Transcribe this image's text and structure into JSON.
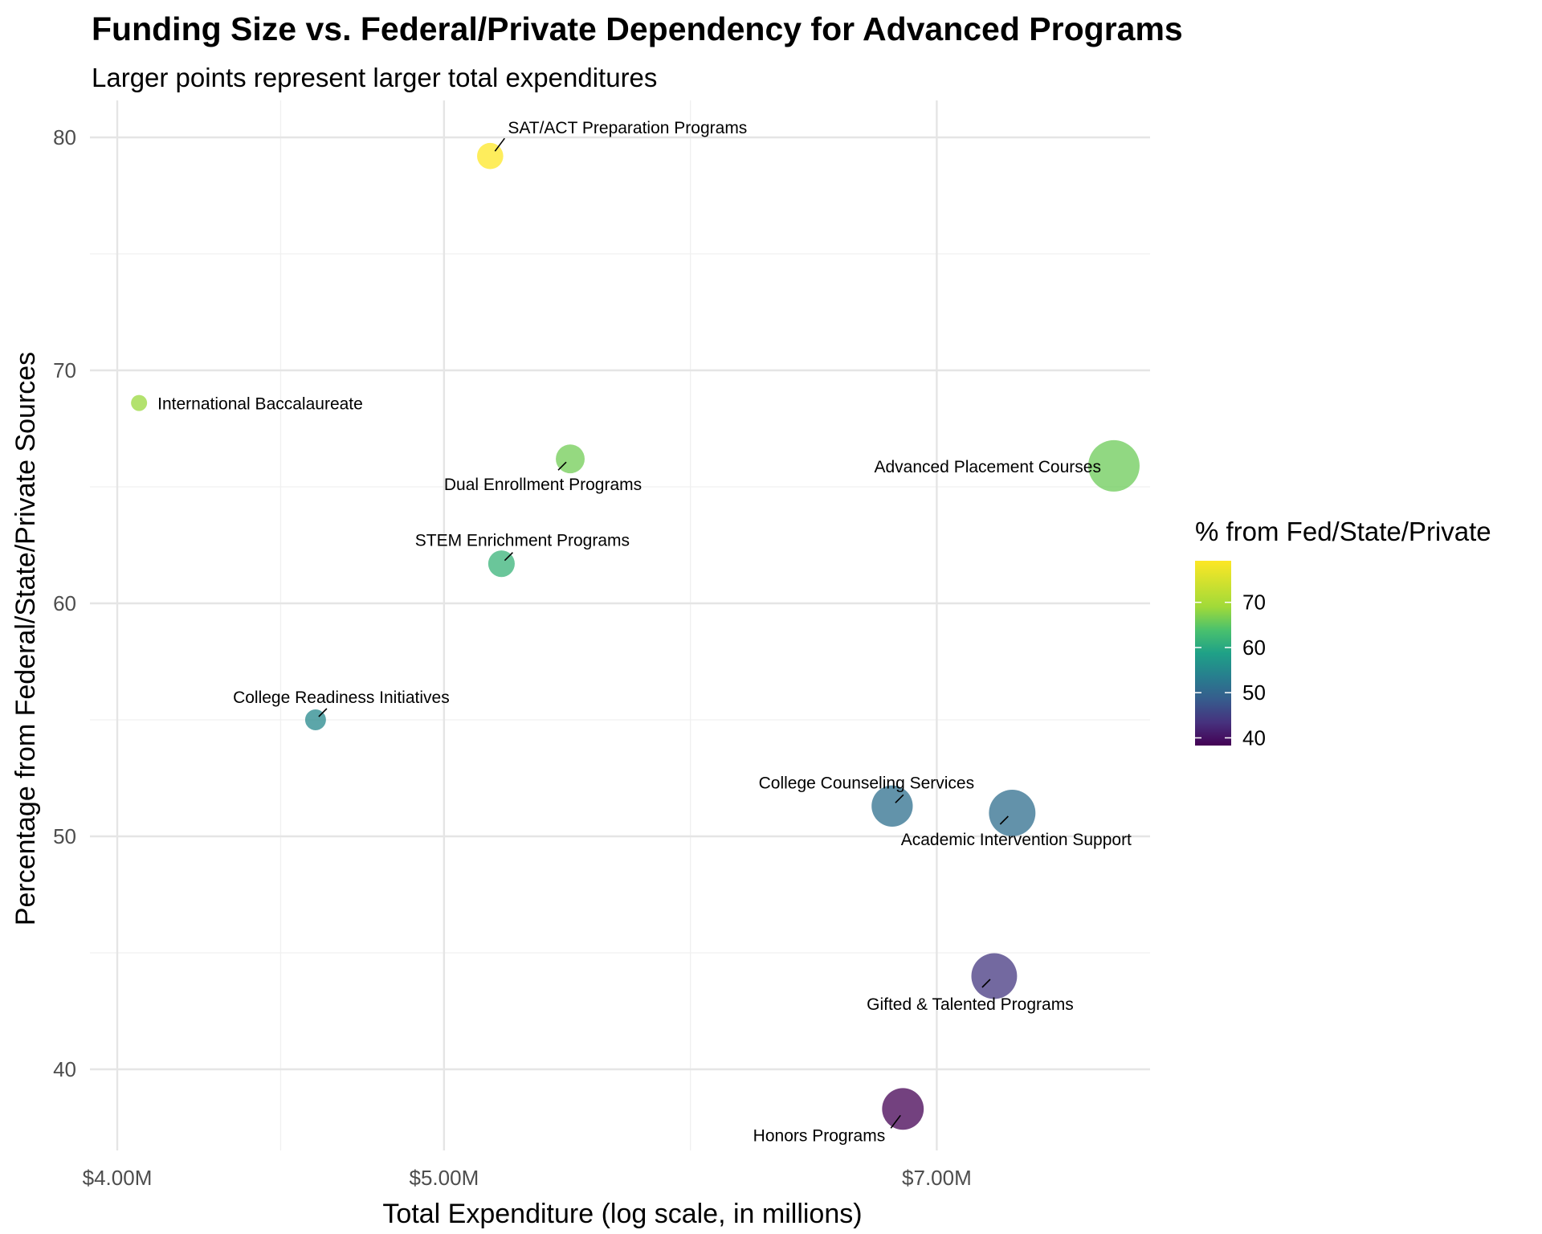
{
  "chart_data": {
    "type": "scatter",
    "title": "Funding Size vs. Federal/Private Dependency for Advanced Programs",
    "subtitle": "Larger points represent larger total expenditures",
    "xlabel": "Total Expenditure (log scale, in millions)",
    "ylabel": "Percentage from Federal/State/Private Sources",
    "x_scale": "log",
    "x_unit": "millions USD",
    "xlim": [
      4.0,
      8.25
    ],
    "ylim": [
      36.5,
      81.5
    ],
    "x_ticks": [
      {
        "value": 4.0,
        "label": "$4.00M"
      },
      {
        "value": 5.0,
        "label": "$5.00M"
      },
      {
        "value": 7.0,
        "label": "$7.00M"
      }
    ],
    "y_ticks": [
      {
        "value": 40,
        "label": "40"
      },
      {
        "value": 50,
        "label": "50"
      },
      {
        "value": 60,
        "label": "60"
      },
      {
        "value": 70,
        "label": "70"
      },
      {
        "value": 80,
        "label": "80"
      }
    ],
    "grid": true,
    "size_encodes": "total expenditure",
    "color_encodes": "percentage from federal/state/private",
    "colormap": "viridis",
    "legend": {
      "title": "% from Fed/State/Private",
      "placement": "right",
      "ticks": [
        {
          "value": 40,
          "label": "40"
        },
        {
          "value": 50,
          "label": "50"
        },
        {
          "value": 60,
          "label": "60"
        },
        {
          "value": 70,
          "label": "70"
        }
      ],
      "range": [
        38.3,
        79.2
      ]
    },
    "points": [
      {
        "label": "SAT/ACT Preparation Programs",
        "x": 5.16,
        "y": 79.2,
        "label_pos": "upper-right"
      },
      {
        "label": "International Baccalaureate",
        "x": 4.06,
        "y": 68.6,
        "label_pos": "right"
      },
      {
        "label": "Dual Enrollment Programs",
        "x": 5.45,
        "y": 66.2,
        "label_pos": "below"
      },
      {
        "label": "Advanced Placement Courses",
        "x": 7.9,
        "y": 65.9,
        "label_pos": "left"
      },
      {
        "label": "STEM Enrichment Programs",
        "x": 5.2,
        "y": 61.7,
        "label_pos": "above"
      },
      {
        "label": "College Readiness Initiatives",
        "x": 4.58,
        "y": 55.0,
        "label_pos": "above"
      },
      {
        "label": "College Counseling Services",
        "x": 6.79,
        "y": 51.3,
        "label_pos": "above"
      },
      {
        "label": "Academic Intervention Support",
        "x": 7.37,
        "y": 51.0,
        "label_pos": "below"
      },
      {
        "label": "Gifted & Talented Programs",
        "x": 7.28,
        "y": 44.0,
        "label_pos": "below"
      },
      {
        "label": "Honors Programs",
        "x": 6.84,
        "y": 38.3,
        "label_pos": "lower-left"
      }
    ]
  }
}
